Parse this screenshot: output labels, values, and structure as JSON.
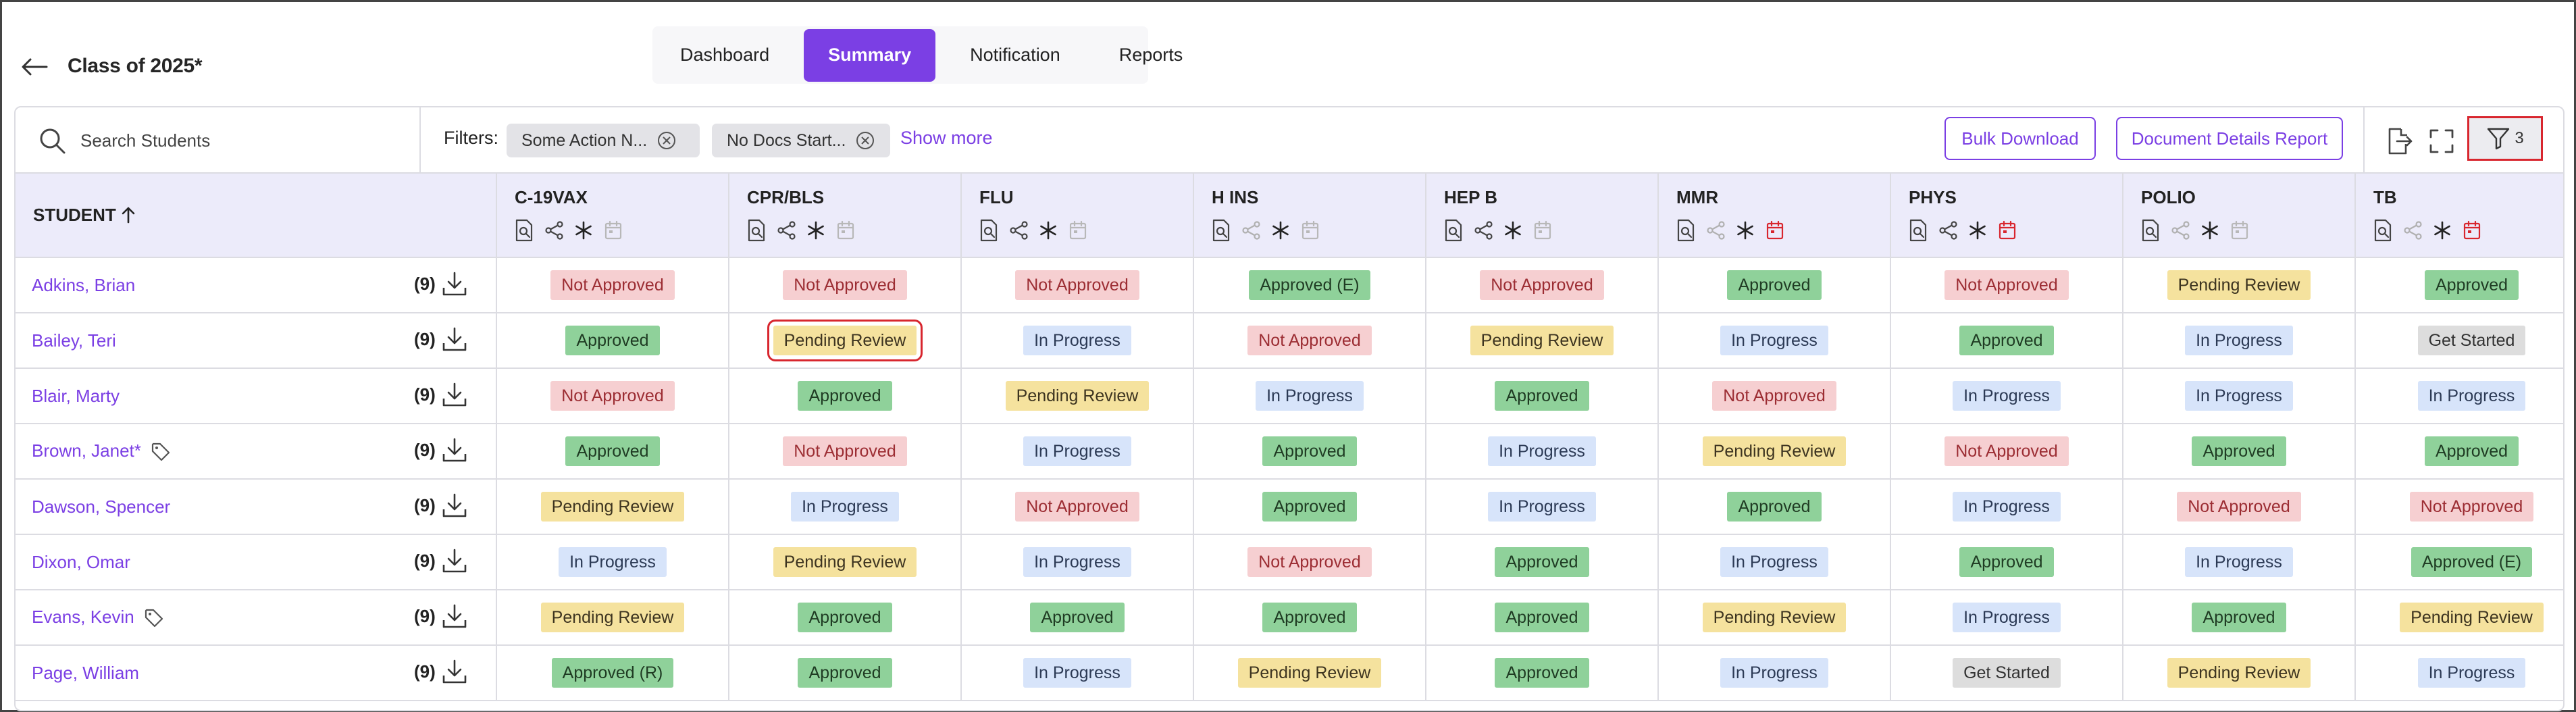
{
  "header": {
    "title": "Class of 2025*",
    "tabs": [
      {
        "label": "Dashboard",
        "active": false
      },
      {
        "label": "Summary",
        "active": true
      },
      {
        "label": "Notification",
        "active": false
      },
      {
        "label": "Reports",
        "active": false
      }
    ]
  },
  "toolbar": {
    "search_placeholder": "Search Students",
    "filters_label": "Filters:",
    "chips": [
      "Some Action N...",
      "No Docs Start..."
    ],
    "show_more": "Show more",
    "bulk_download": "Bulk Download",
    "doc_details_report": "Document Details Report",
    "filter_count": "3",
    "icons": [
      "export-icon",
      "expand-icon",
      "filter-icon"
    ]
  },
  "table": {
    "student_header": "STUDENT",
    "sort": "ascending",
    "columns": [
      {
        "name": "C-19VAX",
        "share_enabled": true,
        "calendar_alert": false
      },
      {
        "name": "CPR/BLS",
        "share_enabled": true,
        "calendar_alert": false
      },
      {
        "name": "FLU",
        "share_enabled": true,
        "calendar_alert": false
      },
      {
        "name": "H INS",
        "share_enabled": false,
        "calendar_alert": false
      },
      {
        "name": "HEP B",
        "share_enabled": true,
        "calendar_alert": false
      },
      {
        "name": "MMR",
        "share_enabled": false,
        "calendar_alert": true
      },
      {
        "name": "PHYS",
        "share_enabled": true,
        "calendar_alert": true
      },
      {
        "name": "POLIO",
        "share_enabled": false,
        "calendar_alert": false
      },
      {
        "name": "TB",
        "share_enabled": false,
        "calendar_alert": true
      }
    ],
    "rows": [
      {
        "name": "Adkins, Brian",
        "tag": false,
        "count": "(9)",
        "statuses": [
          "Not Approved",
          "Not Approved",
          "Not Approved",
          "Approved (E)",
          "Not Approved",
          "Approved",
          "Not Approved",
          "Pending Review",
          "Approved"
        ]
      },
      {
        "name": "Bailey, Teri",
        "tag": false,
        "count": "(9)",
        "statuses": [
          "Approved",
          "Pending Review",
          "In Progress",
          "Not Approved",
          "Pending Review",
          "In Progress",
          "Approved",
          "In Progress",
          "Get Started"
        ]
      },
      {
        "name": "Blair, Marty",
        "tag": false,
        "count": "(9)",
        "statuses": [
          "Not Approved",
          "Approved",
          "Pending Review",
          "In Progress",
          "Approved",
          "Not Approved",
          "In Progress",
          "In Progress",
          "In Progress"
        ]
      },
      {
        "name": "Brown, Janet*",
        "tag": true,
        "count": "(9)",
        "statuses": [
          "Approved",
          "Not Approved",
          "In Progress",
          "Approved",
          "In Progress",
          "Pending Review",
          "Not Approved",
          "Approved",
          "Approved"
        ]
      },
      {
        "name": "Dawson, Spencer",
        "tag": false,
        "count": "(9)",
        "statuses": [
          "Pending Review",
          "In Progress",
          "Not Approved",
          "Approved",
          "In Progress",
          "Approved",
          "In Progress",
          "Not Approved",
          "Not Approved"
        ]
      },
      {
        "name": "Dixon, Omar",
        "tag": false,
        "count": "(9)",
        "statuses": [
          "In Progress",
          "Pending Review",
          "In Progress",
          "Not Approved",
          "Approved",
          "In Progress",
          "Approved",
          "In Progress",
          "Approved (E)"
        ]
      },
      {
        "name": "Evans, Kevin",
        "tag": true,
        "count": "(9)",
        "statuses": [
          "Pending Review",
          "Approved",
          "Approved",
          "Approved",
          "Approved",
          "Pending Review",
          "In Progress",
          "Approved",
          "Pending Review"
        ]
      },
      {
        "name": "Page, William",
        "tag": false,
        "count": "(9)",
        "statuses": [
          "Approved (R)",
          "Approved",
          "In Progress",
          "Pending Review",
          "Approved",
          "In Progress",
          "Get Started",
          "Pending Review",
          "In Progress"
        ]
      }
    ],
    "selected_cell": {
      "row": 1,
      "col": 1
    }
  },
  "status_colors": {
    "Approved": {
      "bg": "#8fd19a",
      "fg": "#1f3b23"
    },
    "Approved (E)": {
      "bg": "#8fd19a",
      "fg": "#1f3b23"
    },
    "Approved (R)": {
      "bg": "#8fd19a",
      "fg": "#1f3b23"
    },
    "Not Approved": {
      "bg": "#f6cfd1",
      "fg": "#9c2d33"
    },
    "Pending Review": {
      "bg": "#f5e29e",
      "fg": "#3d3420"
    },
    "In Progress": {
      "bg": "#d7e4fa",
      "fg": "#2c3a55"
    },
    "Get Started": {
      "bg": "#dddddd",
      "fg": "#333333"
    }
  },
  "colors": {
    "accent": "#7b3fe4",
    "highlight_border": "#d8262e",
    "header_bg": "#ecebfa"
  }
}
